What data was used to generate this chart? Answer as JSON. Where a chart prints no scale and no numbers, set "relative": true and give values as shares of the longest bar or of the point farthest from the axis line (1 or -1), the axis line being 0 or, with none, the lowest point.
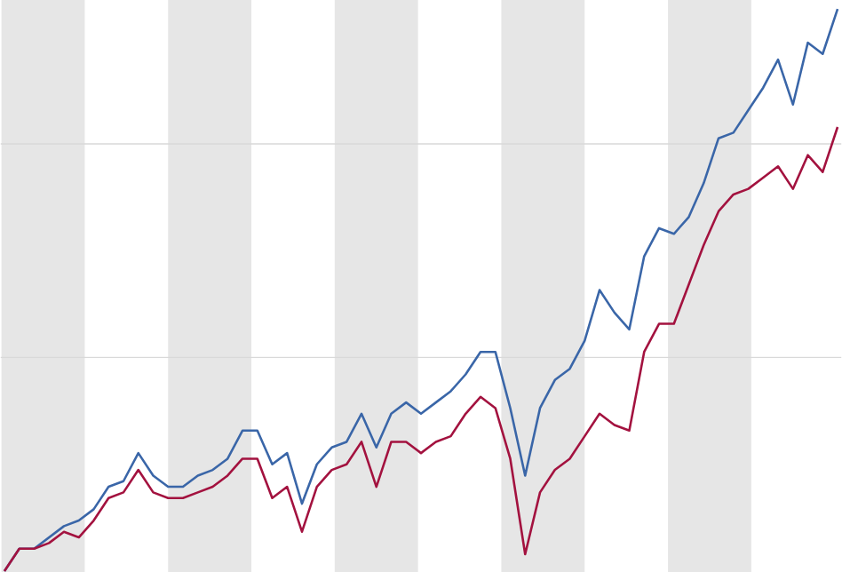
{
  "chart_data": {
    "type": "line",
    "relative": true,
    "ref_lines": [
      {
        "axis": "y",
        "value": 0.38,
        "color": "#d9d9d9"
      },
      {
        "axis": "y",
        "value": 0.76,
        "color": "#d9d9d9"
      }
    ],
    "categories": [
      null,
      null,
      null,
      null,
      null,
      null,
      null,
      null,
      null,
      null,
      null,
      null,
      null,
      null,
      null,
      null,
      null,
      null,
      null,
      null,
      null,
      null,
      null,
      null,
      null,
      null,
      null,
      null,
      null,
      null,
      null,
      null,
      null,
      null,
      null,
      null,
      null,
      null,
      null,
      null,
      null,
      null,
      null,
      null,
      null,
      null,
      null,
      null,
      null,
      null,
      null,
      null,
      null,
      null,
      null,
      null,
      null
    ],
    "series": [
      {
        "color": "#3a66a8",
        "values": [
          0,
          0.04,
          0.04,
          0.06,
          0.08,
          0.09,
          0.11,
          0.15,
          0.16,
          0.21,
          0.17,
          0.15,
          0.15,
          0.17,
          0.18,
          0.2,
          0.25,
          0.25,
          0.19,
          0.21,
          0.12,
          0.19,
          0.22,
          0.23,
          0.28,
          0.22,
          0.28,
          0.3,
          0.28,
          0.3,
          0.32,
          0.35,
          0.39,
          0.39,
          0.29,
          0.17,
          0.29,
          0.34,
          0.36,
          0.41,
          0.5,
          0.46,
          0.43,
          0.56,
          0.61,
          0.6,
          0.63,
          0.69,
          0.77,
          0.78,
          0.82,
          0.86,
          0.91,
          0.83,
          0.94,
          0.92,
          1
        ]
      },
      {
        "color": "#a3123f",
        "values": [
          0,
          0.04,
          0.04,
          0.05,
          0.07,
          0.06,
          0.09,
          0.13,
          0.14,
          0.18,
          0.14,
          0.13,
          0.13,
          0.14,
          0.15,
          0.17,
          0.2,
          0.2,
          0.13,
          0.15,
          0.07,
          0.15,
          0.18,
          0.19,
          0.23,
          0.15,
          0.23,
          0.23,
          0.21,
          0.23,
          0.24,
          0.28,
          0.31,
          0.29,
          0.2,
          0.03,
          0.14,
          0.18,
          0.2,
          0.24,
          0.28,
          0.26,
          0.25,
          0.39,
          0.44,
          0.44,
          0.51,
          0.58,
          0.64,
          0.67,
          0.68,
          0.7,
          0.72,
          0.68,
          0.74,
          0.71,
          0.79
        ]
      }
    ]
  }
}
